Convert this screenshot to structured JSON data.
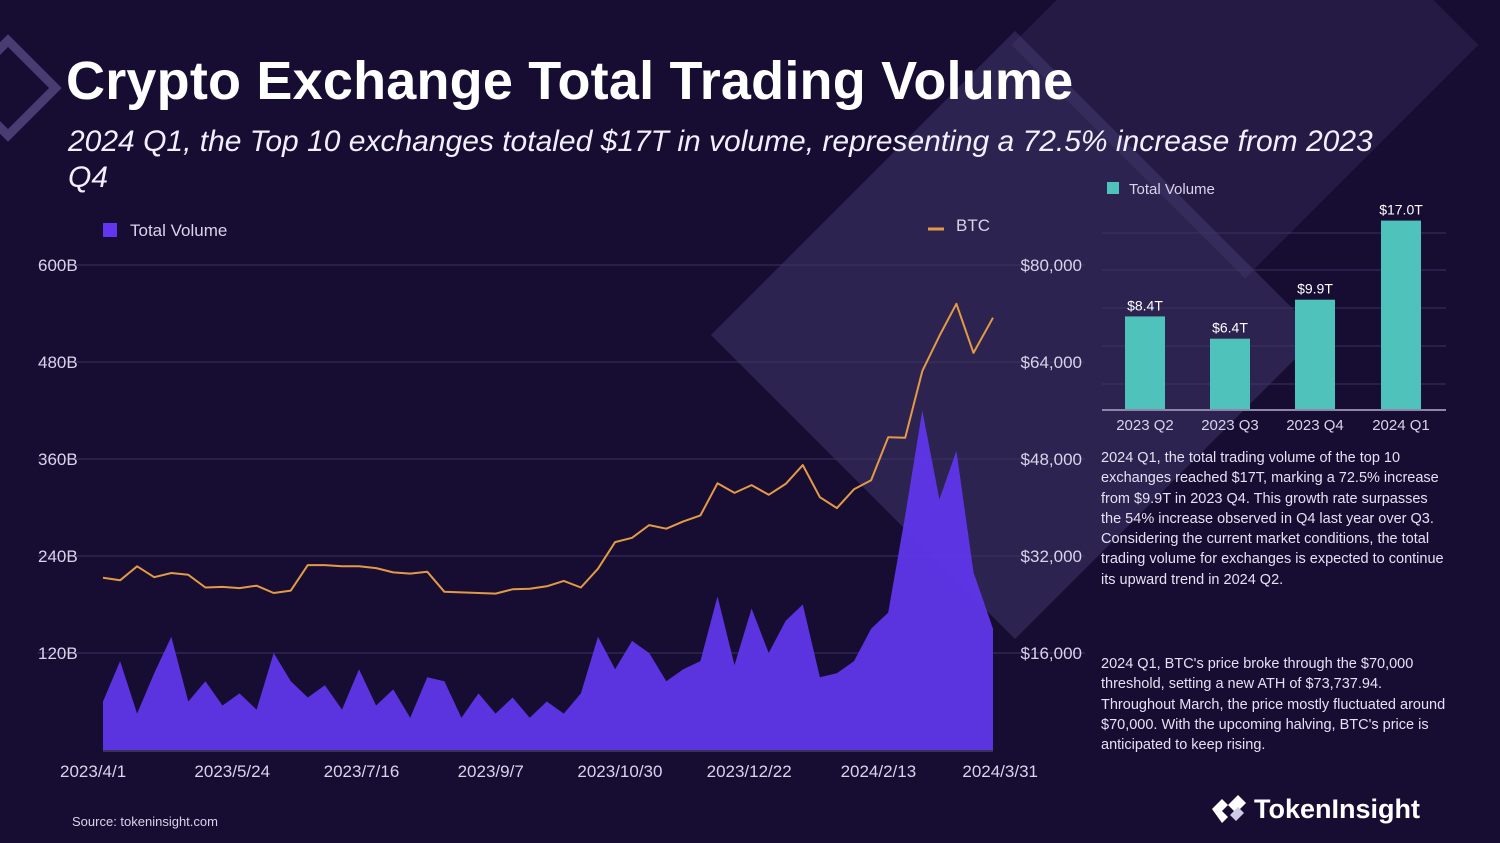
{
  "page": {
    "title": "Crypto Exchange Total Trading Volume",
    "subtitle": "2024 Q1, the Top 10 exchanges totaled $17T in volume, representing a 72.5% increase from 2023 Q4"
  },
  "colors": {
    "background": "#170d33",
    "volume": "#6236ee",
    "btc": "#e39a44",
    "bar": "#4fc3bb",
    "grid": "#3a3360"
  },
  "chart_data": [
    {
      "type": "area",
      "legend": {
        "volume": "Total Volume",
        "btc": "BTC"
      },
      "x_ticks": [
        "2023/4/1",
        "2023/5/24",
        "2023/7/16",
        "2023/9/7",
        "2023/10/30",
        "2023/12/22",
        "2024/2/13",
        "2024/3/31"
      ],
      "x_range": [
        "2023/4/1",
        "2024/3/31"
      ],
      "y_left": {
        "ticks": [
          "120B",
          "240B",
          "360B",
          "480B",
          "600B"
        ],
        "range": [
          0,
          600
        ],
        "unit": "B"
      },
      "y_right": {
        "ticks": [
          "$16,000",
          "$32,000",
          "$48,000",
          "$64,000",
          "$80,000"
        ],
        "range": [
          0,
          80000
        ]
      },
      "grid": true,
      "series": [
        {
          "name": "Total Volume",
          "color": "#6236ee",
          "points": [
            [
              "2023/4/1",
              60
            ],
            [
              "2023/4/8",
              110
            ],
            [
              "2023/4/15",
              45
            ],
            [
              "2023/4/22",
              95
            ],
            [
              "2023/4/29",
              140
            ],
            [
              "2023/5/6",
              60
            ],
            [
              "2023/5/13",
              85
            ],
            [
              "2023/5/20",
              55
            ],
            [
              "2023/5/27",
              70
            ],
            [
              "2023/6/3",
              50
            ],
            [
              "2023/6/10",
              120
            ],
            [
              "2023/6/17",
              85
            ],
            [
              "2023/6/24",
              65
            ],
            [
              "2023/7/1",
              80
            ],
            [
              "2023/7/8",
              50
            ],
            [
              "2023/7/15",
              100
            ],
            [
              "2023/7/22",
              55
            ],
            [
              "2023/7/29",
              75
            ],
            [
              "2023/8/5",
              40
            ],
            [
              "2023/8/12",
              90
            ],
            [
              "2023/8/19",
              85
            ],
            [
              "2023/8/26",
              40
            ],
            [
              "2023/9/2",
              70
            ],
            [
              "2023/9/9",
              45
            ],
            [
              "2023/9/16",
              65
            ],
            [
              "2023/9/23",
              40
            ],
            [
              "2023/9/30",
              60
            ],
            [
              "2023/10/7",
              45
            ],
            [
              "2023/10/14",
              70
            ],
            [
              "2023/10/21",
              140
            ],
            [
              "2023/10/28",
              100
            ],
            [
              "2023/11/4",
              135
            ],
            [
              "2023/11/11",
              120
            ],
            [
              "2023/11/18",
              85
            ],
            [
              "2023/11/25",
              100
            ],
            [
              "2023/12/2",
              110
            ],
            [
              "2023/12/9",
              190
            ],
            [
              "2023/12/16",
              105
            ],
            [
              "2023/12/23",
              175
            ],
            [
              "2023/12/30",
              120
            ],
            [
              "2024/1/6",
              160
            ],
            [
              "2024/1/13",
              180
            ],
            [
              "2024/1/20",
              90
            ],
            [
              "2024/1/27",
              95
            ],
            [
              "2024/2/3",
              110
            ],
            [
              "2024/2/10",
              150
            ],
            [
              "2024/2/17",
              170
            ],
            [
              "2024/2/24",
              290
            ],
            [
              "2024/3/2",
              420
            ],
            [
              "2024/3/9",
              310
            ],
            [
              "2024/3/16",
              370
            ],
            [
              "2024/3/23",
              220
            ],
            [
              "2024/3/31",
              150
            ]
          ]
        },
        {
          "name": "BTC",
          "color": "#e39a44",
          "points": [
            [
              "2023/4/1",
              28400
            ],
            [
              "2023/4/8",
              28000
            ],
            [
              "2023/4/15",
              30300
            ],
            [
              "2023/4/22",
              28500
            ],
            [
              "2023/4/29",
              29200
            ],
            [
              "2023/5/6",
              28900
            ],
            [
              "2023/5/13",
              26800
            ],
            [
              "2023/5/20",
              26900
            ],
            [
              "2023/5/27",
              26700
            ],
            [
              "2023/6/3",
              27100
            ],
            [
              "2023/6/10",
              25900
            ],
            [
              "2023/6/17",
              26300
            ],
            [
              "2023/6/24",
              30500
            ],
            [
              "2023/7/1",
              30500
            ],
            [
              "2023/7/8",
              30300
            ],
            [
              "2023/7/15",
              30300
            ],
            [
              "2023/7/22",
              30000
            ],
            [
              "2023/7/29",
              29300
            ],
            [
              "2023/8/5",
              29100
            ],
            [
              "2023/8/12",
              29400
            ],
            [
              "2023/8/19",
              26100
            ],
            [
              "2023/8/26",
              26000
            ],
            [
              "2023/9/2",
              25900
            ],
            [
              "2023/9/9",
              25800
            ],
            [
              "2023/9/16",
              26500
            ],
            [
              "2023/9/23",
              26600
            ],
            [
              "2023/9/30",
              27000
            ],
            [
              "2023/10/7",
              27900
            ],
            [
              "2023/10/14",
              26800
            ],
            [
              "2023/10/21",
              29900
            ],
            [
              "2023/10/28",
              34300
            ],
            [
              "2023/11/4",
              35000
            ],
            [
              "2023/11/11",
              37100
            ],
            [
              "2023/11/18",
              36500
            ],
            [
              "2023/11/25",
              37700
            ],
            [
              "2023/12/2",
              38700
            ],
            [
              "2023/12/9",
              44000
            ],
            [
              "2023/12/16",
              42400
            ],
            [
              "2023/12/23",
              43700
            ],
            [
              "2023/12/30",
              42100
            ],
            [
              "2024/1/6",
              43900
            ],
            [
              "2024/1/13",
              47000
            ],
            [
              "2024/1/20",
              41700
            ],
            [
              "2024/1/27",
              39900
            ],
            [
              "2024/2/3",
              43000
            ],
            [
              "2024/2/10",
              44500
            ],
            [
              "2024/2/17",
              51600
            ],
            [
              "2024/2/24",
              51500
            ],
            [
              "2024/3/2",
              62500
            ],
            [
              "2024/3/9",
              68300
            ],
            [
              "2024/3/16",
              73600
            ],
            [
              "2024/3/23",
              65500
            ],
            [
              "2024/3/31",
              71300
            ]
          ]
        }
      ]
    },
    {
      "type": "bar",
      "legend": "Total Volume",
      "categories": [
        "2023 Q2",
        "2023 Q3",
        "2023 Q4",
        "2024 Q1"
      ],
      "values": [
        8.4,
        6.4,
        9.9,
        17.0
      ],
      "labels": [
        "$8.4T",
        "$6.4T",
        "$9.9T",
        "$17.0T"
      ],
      "unit": "T",
      "ylim": [
        0,
        18.4
      ],
      "grid": true
    }
  ],
  "notes": [
    "2024 Q1, the total trading volume of the top 10 exchanges reached $17T, marking a 72.5% increase from $9.9T in 2023 Q4. This growth rate surpasses the 54% increase observed in Q4 last year over Q3. Considering the current market conditions, the total trading volume for exchanges is expected to continue its upward trend in 2024 Q2.",
    "2024 Q1, BTC's price broke through the $70,000 threshold, setting a new ATH of $73,737.94. Throughout March, the price mostly fluctuated around $70,000. With the upcoming halving, BTC's price is anticipated to keep rising."
  ],
  "footer": {
    "source": "Source: tokeninsight.com",
    "brand": "TokenInsight"
  }
}
